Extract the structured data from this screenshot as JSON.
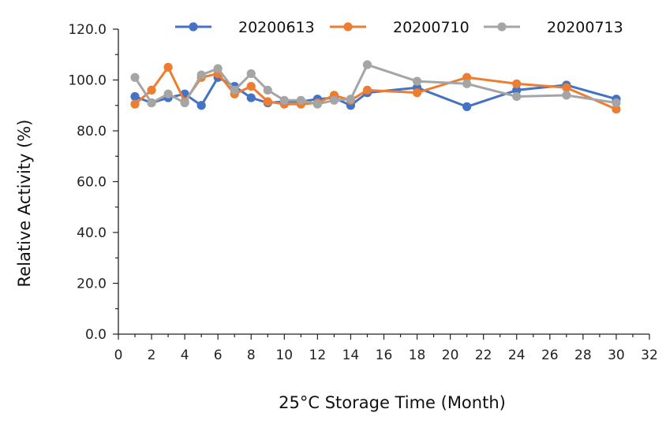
{
  "chart_data": {
    "type": "line",
    "title": "",
    "xlabel": "25°C Storage Time (Month)",
    "ylabel": "Relative Activity (%)",
    "xlim": [
      0,
      32
    ],
    "ylim": [
      0,
      120
    ],
    "xticks": [
      0,
      2,
      4,
      6,
      8,
      10,
      12,
      14,
      16,
      18,
      20,
      22,
      24,
      26,
      28,
      30,
      32
    ],
    "yticks": [
      "0.0",
      "20.0",
      "40.0",
      "60.0",
      "80.0",
      "100.0",
      "120.0"
    ],
    "grid": false,
    "legend_position": "top",
    "x": [
      1,
      2,
      3,
      4,
      5,
      6,
      7,
      8,
      9,
      10,
      11,
      12,
      13,
      14,
      15,
      18,
      21,
      24,
      27,
      30
    ],
    "series": [
      {
        "name": "20200613",
        "color": "#4472C4",
        "values": [
          93.5,
          91.0,
          93.0,
          94.5,
          90.0,
          101.0,
          97.5,
          93.0,
          91.0,
          91.5,
          91.5,
          92.5,
          93.0,
          90.0,
          95.0,
          97.0,
          89.5,
          96.0,
          98.0,
          92.5
        ]
      },
      {
        "name": "20200710",
        "color": "#ED7D31",
        "values": [
          90.5,
          96.0,
          105.0,
          91.5,
          101.0,
          102.5,
          94.5,
          97.5,
          91.5,
          90.5,
          90.5,
          91.0,
          94.0,
          92.0,
          96.0,
          95.0,
          101.0,
          98.5,
          97.0,
          88.5
        ]
      },
      {
        "name": "20200713",
        "color": "#A5A5A5",
        "values": [
          101.0,
          91.0,
          94.5,
          91.0,
          102.0,
          104.5,
          96.0,
          102.5,
          96.0,
          92.0,
          92.0,
          90.5,
          92.0,
          92.5,
          106.0,
          99.5,
          98.5,
          93.5,
          94.0,
          91.0
        ]
      }
    ]
  }
}
